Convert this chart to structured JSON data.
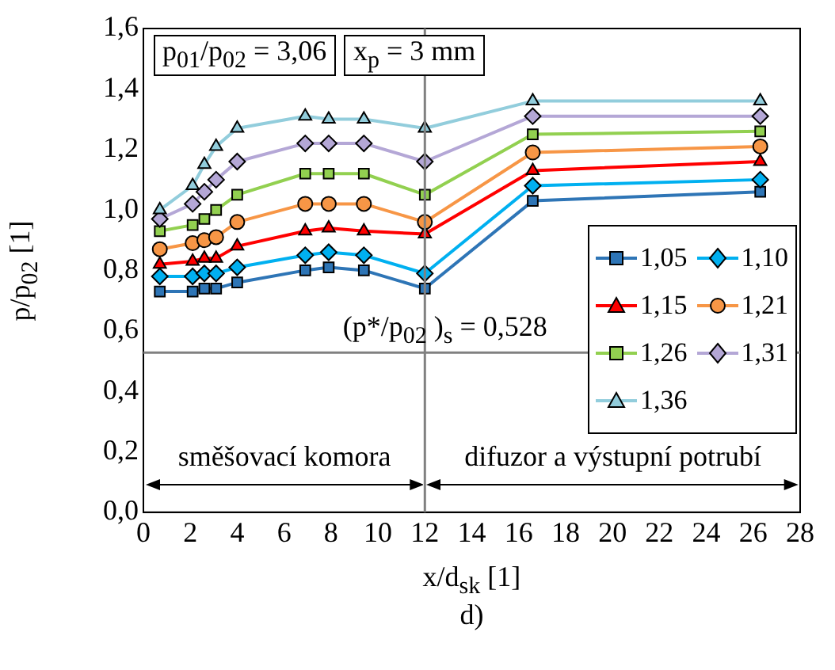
{
  "chart_data": {
    "type": "line",
    "xlabel": "x/d$_{sk}$ [1]",
    "ylabel": "p/p$_{02}$ [1]",
    "x": [
      0.7,
      2.1,
      2.6,
      3.1,
      4.0,
      6.9,
      7.9,
      9.4,
      12.0,
      16.6,
      26.3
    ],
    "series": [
      {
        "name": "1,05",
        "color": "#2e75b6",
        "marker": "square",
        "values": [
          0.73,
          0.73,
          0.74,
          0.74,
          0.76,
          0.8,
          0.81,
          0.8,
          0.74,
          1.03,
          1.06
        ]
      },
      {
        "name": "1,10",
        "color": "#00b0f0",
        "marker": "diamond",
        "values": [
          0.78,
          0.78,
          0.79,
          0.79,
          0.81,
          0.85,
          0.86,
          0.85,
          0.79,
          1.08,
          1.1
        ]
      },
      {
        "name": "1,15",
        "color": "#ff0000",
        "marker": "triangle",
        "values": [
          0.82,
          0.83,
          0.84,
          0.84,
          0.88,
          0.93,
          0.94,
          0.93,
          0.92,
          1.13,
          1.16
        ]
      },
      {
        "name": "1,21",
        "color": "#f79646",
        "marker": "circle",
        "values": [
          0.87,
          0.89,
          0.9,
          0.91,
          0.96,
          1.02,
          1.02,
          1.02,
          0.96,
          1.19,
          1.21
        ]
      },
      {
        "name": "1,26",
        "color": "#92d050",
        "marker": "square",
        "values": [
          0.93,
          0.95,
          0.97,
          1.0,
          1.05,
          1.12,
          1.12,
          1.12,
          1.05,
          1.25,
          1.26
        ]
      },
      {
        "name": "1,31",
        "color": "#b4a7d6",
        "marker": "diamond",
        "values": [
          0.97,
          1.02,
          1.06,
          1.1,
          1.16,
          1.22,
          1.22,
          1.22,
          1.16,
          1.31,
          1.31
        ]
      },
      {
        "name": "1,36",
        "color": "#92cddc",
        "marker": "triangle",
        "values": [
          1.0,
          1.08,
          1.15,
          1.21,
          1.27,
          1.31,
          1.3,
          1.3,
          1.27,
          1.36,
          1.36
        ]
      }
    ],
    "xlim": [
      0,
      28
    ],
    "xticks": [
      0,
      2,
      4,
      6,
      8,
      10,
      12,
      14,
      16,
      18,
      20,
      22,
      24,
      26,
      28
    ],
    "ylim": [
      0,
      1.6
    ],
    "yticks": [
      {
        "value": 0,
        "label": "0,0"
      },
      {
        "value": 0.2,
        "label": "0,2"
      },
      {
        "value": 0.4,
        "label": "0,4"
      },
      {
        "value": 0.6,
        "label": "0,6"
      },
      {
        "value": 0.8,
        "label": "0,8"
      },
      {
        "value": 1.0,
        "label": "1,0"
      },
      {
        "value": 1.2,
        "label": "1,2"
      },
      {
        "value": 1.4,
        "label": "1,4"
      },
      {
        "value": 1.6,
        "label": "1,6"
      }
    ],
    "grid": false,
    "legend": "bottom right",
    "line_style": "solid",
    "ref_lines": [
      {
        "axis": "y",
        "value": 0.528,
        "label": "(p*/p$_{02}$ )$_{s}$ = 0,528",
        "color": "#808080"
      },
      {
        "axis": "x",
        "value": 12,
        "color": "#808080"
      }
    ],
    "annotations": [
      "p$_{01}$/p$_{02}$ = 3,06",
      "x$_{p}$ = 3 mm",
      "směšovací komora",
      "difuzor a výstupní potrubí",
      "d)"
    ]
  }
}
